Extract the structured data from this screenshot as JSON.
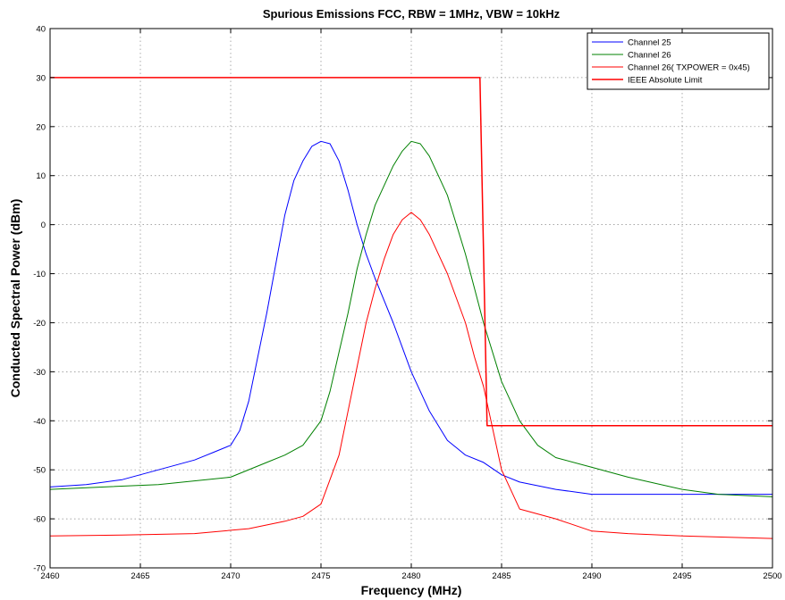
{
  "chart_data": {
    "type": "line",
    "title": "Spurious Emissions FCC, RBW = 1MHz, VBW = 10kHz",
    "xlabel": "Frequency (MHz)",
    "ylabel": "Conducted Spectral Power (dBm)",
    "xlim": [
      2460,
      2500
    ],
    "ylim": [
      -70,
      40
    ],
    "xticks": [
      2460,
      2465,
      2470,
      2475,
      2480,
      2485,
      2490,
      2495,
      2500
    ],
    "yticks": [
      -70,
      -60,
      -50,
      -40,
      -30,
      -20,
      -10,
      0,
      10,
      20,
      30,
      40
    ],
    "grid": "dotted",
    "legend_position": "top-right",
    "series": [
      {
        "name": "Channel 25",
        "color": "#0000ff",
        "x": [
          2460,
          2462,
          2464,
          2466,
          2468,
          2469,
          2470,
          2470.5,
          2471,
          2471.5,
          2472,
          2472.5,
          2473,
          2473.5,
          2474,
          2474.5,
          2475,
          2475.5,
          2476,
          2476.5,
          2477,
          2477.5,
          2478,
          2478.5,
          2479,
          2479.5,
          2480,
          2480.5,
          2481,
          2482,
          2483,
          2484,
          2485,
          2486,
          2488,
          2490,
          2495,
          2500
        ],
        "y": [
          -53.5,
          -53,
          -52,
          -50,
          -48,
          -46.5,
          -45,
          -42,
          -36,
          -27,
          -18,
          -8,
          2,
          9,
          13,
          16,
          17,
          16.5,
          13,
          7,
          0,
          -6,
          -11,
          -15.5,
          -20,
          -25,
          -30,
          -34,
          -38,
          -44,
          -47,
          -48.5,
          -51,
          -52.5,
          -54,
          -55,
          -55,
          -55
        ]
      },
      {
        "name": "Channel 26",
        "color": "#008000",
        "x": [
          2460,
          2463,
          2466,
          2470,
          2472,
          2473,
          2474,
          2475,
          2475.5,
          2476,
          2476.5,
          2477,
          2477.5,
          2478,
          2478.5,
          2479,
          2479.5,
          2480,
          2480.5,
          2481,
          2481.5,
          2482,
          2482.5,
          2483,
          2483.5,
          2484,
          2485,
          2486,
          2487,
          2488,
          2490,
          2492,
          2495,
          2497,
          2500
        ],
        "y": [
          -54,
          -53.5,
          -53,
          -51.5,
          -48.5,
          -47,
          -45,
          -40,
          -34,
          -26,
          -18,
          -9,
          -2,
          4,
          8,
          12,
          15,
          17,
          16.5,
          14,
          10,
          6,
          0,
          -6,
          -13,
          -20,
          -32,
          -40,
          -45,
          -47.5,
          -49.5,
          -51.5,
          -54,
          -55,
          -55.5
        ]
      },
      {
        "name": "Channel 26( TXPOWER = 0x45)",
        "color": "#ff0000",
        "x": [
          2460,
          2464,
          2468,
          2471,
          2473,
          2474,
          2475,
          2476,
          2476.5,
          2477,
          2477.5,
          2478,
          2478.5,
          2479,
          2479.5,
          2480,
          2480.5,
          2481,
          2481.5,
          2482,
          2482.5,
          2483,
          2483.5,
          2484,
          2485,
          2486,
          2488,
          2490,
          2492,
          2495,
          2500
        ],
        "y": [
          -63.5,
          -63.3,
          -63,
          -62,
          -60.5,
          -59.5,
          -57,
          -47,
          -38,
          -29,
          -20,
          -13,
          -7,
          -2,
          1,
          2.5,
          1,
          -2,
          -6,
          -10,
          -15,
          -20,
          -27,
          -33,
          -50,
          -58,
          -60,
          -62.5,
          -63,
          -63.5,
          -64
        ]
      },
      {
        "name": "IEEE Absolute Limit",
        "color": "#ff0000",
        "x": [
          2460,
          2483.8,
          2484.2,
          2500
        ],
        "y": [
          30,
          30,
          -41,
          -41
        ]
      }
    ]
  }
}
